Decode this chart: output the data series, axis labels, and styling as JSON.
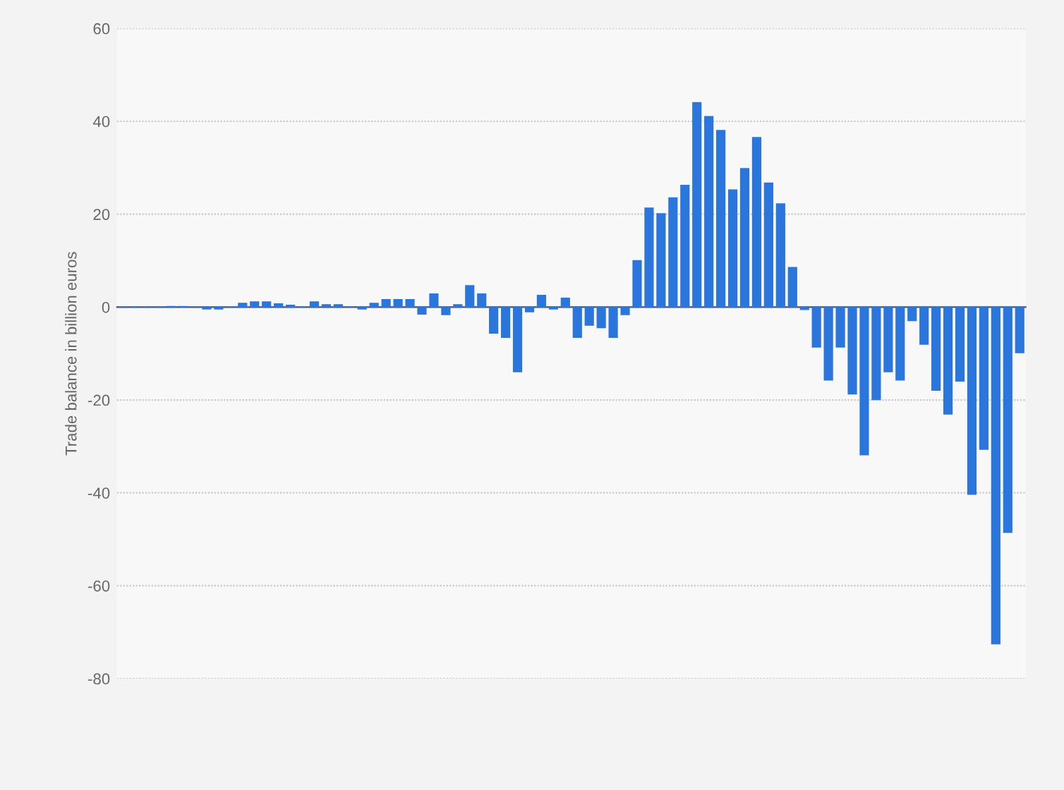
{
  "chart_data": {
    "type": "bar",
    "ylabel": "Trade balance in billion euros",
    "categories": [
      null,
      null,
      null,
      null,
      null,
      null,
      null,
      null,
      null,
      null,
      null,
      null,
      null,
      null,
      null,
      null,
      null,
      null,
      null,
      null,
      null,
      null,
      null,
      null,
      null,
      null,
      null,
      null,
      null,
      null,
      null,
      null,
      null,
      null,
      null,
      null,
      null,
      null,
      null,
      null,
      null,
      null,
      null,
      null,
      null,
      null,
      null,
      null,
      null,
      null,
      null,
      null,
      null,
      null,
      null,
      null,
      null,
      null,
      null,
      null,
      null,
      null,
      null,
      null,
      null,
      null,
      null,
      null,
      null,
      null,
      null,
      null,
      null,
      null,
      null,
      null
    ],
    "values": [
      0,
      0,
      0,
      0,
      0.1,
      0.1,
      0,
      -0.4,
      -0.4,
      0,
      0.8,
      1.1,
      1.1,
      0.7,
      0.4,
      0,
      1.1,
      0.5,
      0.5,
      0,
      -0.4,
      0.8,
      1.6,
      1.6,
      1.6,
      -1.5,
      2.8,
      -1.6,
      0.5,
      4.6,
      2.8,
      -5.6,
      -6.5,
      -13.9,
      -1.0,
      2.5,
      -0.4,
      1.9,
      -6.5,
      -3.9,
      -4.4,
      -6.5,
      -1.6,
      10.0,
      21.3,
      20.1,
      23.5,
      26.2,
      44.0,
      41.0,
      38.0,
      25.2,
      29.8,
      36.5,
      26.7,
      22.2,
      8.5,
      -0.5,
      -8.6,
      -15.7,
      -8.6,
      -18.7,
      -31.8,
      -19.9,
      -13.9,
      -15.7,
      -2.9,
      -8.0,
      -17.9,
      -23.0,
      -15.9,
      -40.3,
      -30.6,
      -72.5,
      -48.5,
      -9.8
    ],
    "color": "#2a76dd",
    "ylim": [
      -80,
      60
    ],
    "yticks": [
      -80,
      -60,
      -40,
      -20,
      0,
      20,
      40,
      60
    ],
    "grid": "y",
    "legend": false,
    "tick_labels": "y"
  }
}
